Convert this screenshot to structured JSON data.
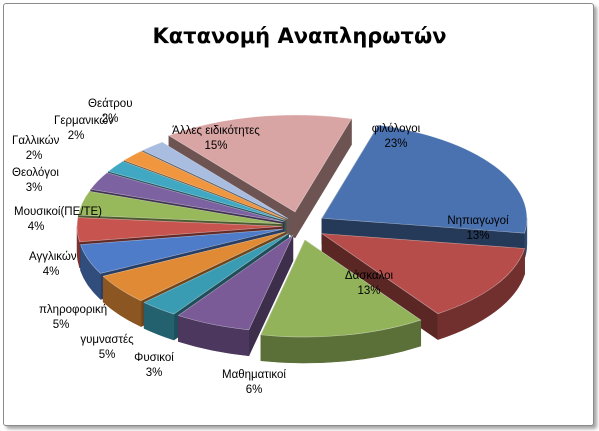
{
  "chart_data": {
    "type": "pie",
    "style": "3d-exploded",
    "title": "Κατανομή Αναπληρωτών",
    "legend": "none",
    "slices": [
      {
        "name": "φιλόλογοι",
        "value": 23,
        "label": "23%",
        "color": "#4a72b0"
      },
      {
        "name": "Νηπιαγωγοί",
        "value": 13,
        "label": "13%",
        "color": "#b64d4a"
      },
      {
        "name": "Δάσκαλοι",
        "value": 13,
        "label": "13%",
        "color": "#93b35a"
      },
      {
        "name": "Μαθηματικοί",
        "value": 6,
        "label": "6%",
        "color": "#7a5b98"
      },
      {
        "name": "Φυσικοί",
        "value": 3,
        "label": "3%",
        "color": "#3a9cb3"
      },
      {
        "name": "γυμναστές",
        "value": 5,
        "label": "5%",
        "color": "#e08a35"
      },
      {
        "name": "πληροφορική",
        "value": 5,
        "label": "5%",
        "color": "#4f7cc8"
      },
      {
        "name": "Αγγλικών",
        "value": 4,
        "label": "4%",
        "color": "#c85450"
      },
      {
        "name": "Μουσικοί(ΠΕ/ΤΕ)",
        "value": 4,
        "label": "4%",
        "color": "#98b85c"
      },
      {
        "name": "Θεολόγοι",
        "value": 3,
        "label": "3%",
        "color": "#7d62a2"
      },
      {
        "name": "Γαλλικών",
        "value": 2,
        "label": "2%",
        "color": "#40a8c2"
      },
      {
        "name": "Γερμανικών",
        "value": 2,
        "label": "2%",
        "color": "#f0963f"
      },
      {
        "name": "Θεάτρου",
        "value": 2,
        "label": "2%",
        "color": "#a9bde0"
      },
      {
        "name": "Άλλες ειδικότητες",
        "value": 15,
        "label": "15%",
        "color": "#d9a5a4"
      }
    ]
  }
}
